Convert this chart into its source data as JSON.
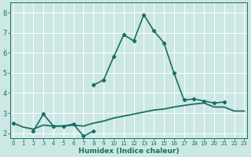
{
  "xlabel": "Humidex (Indice chaleur)",
  "x": [
    0,
    1,
    2,
    3,
    4,
    5,
    6,
    7,
    8,
    9,
    10,
    11,
    12,
    13,
    14,
    15,
    16,
    17,
    18,
    19,
    20,
    21,
    22,
    23
  ],
  "line_spiky": [
    2.5,
    null,
    2.1,
    2.95,
    2.35,
    2.35,
    2.45,
    1.85,
    2.1,
    null,
    null,
    null,
    null,
    null,
    null,
    null,
    null,
    null,
    null,
    null,
    null,
    null,
    null,
    null
  ],
  "line_peak": [
    null,
    null,
    null,
    null,
    null,
    null,
    null,
    null,
    4.4,
    4.65,
    5.8,
    6.9,
    6.6,
    7.9,
    7.1,
    6.5,
    5.0,
    3.65,
    3.7,
    3.6,
    3.5,
    3.55,
    null,
    null
  ],
  "line_smooth": [
    2.5,
    2.3,
    2.2,
    2.4,
    2.35,
    2.35,
    2.4,
    2.35,
    2.5,
    2.6,
    2.75,
    2.85,
    2.95,
    3.05,
    3.15,
    3.2,
    3.3,
    3.38,
    3.45,
    3.5,
    3.3,
    3.3,
    3.1,
    3.1
  ],
  "bg_color": "#cce8e4",
  "grid_color": "#ffffff",
  "line_color": "#1a6e62",
  "xlim": [
    0,
    23
  ],
  "ylim": [
    1.75,
    8.5
  ],
  "yticks": [
    2,
    3,
    4,
    5,
    6,
    7,
    8
  ],
  "xticks": [
    0,
    1,
    2,
    3,
    4,
    5,
    6,
    7,
    8,
    9,
    10,
    11,
    12,
    13,
    14,
    15,
    16,
    17,
    18,
    19,
    20,
    21,
    22,
    23
  ]
}
